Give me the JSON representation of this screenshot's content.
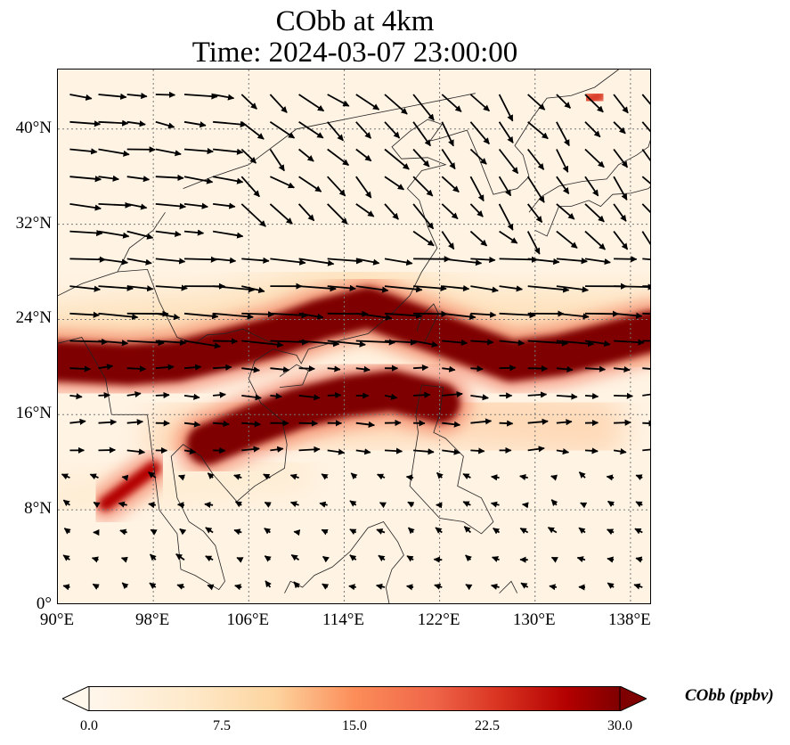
{
  "figure": {
    "title_line1": "CObb at 4km",
    "title_line2": "Time: 2024-03-07 23:00:00"
  },
  "map": {
    "lon_ticks": [
      "90°E",
      "98°E",
      "106°E",
      "114°E",
      "122°E",
      "130°E",
      "138°E"
    ],
    "lat_ticks": [
      "0°",
      "8°N",
      "16°N",
      "24°N",
      "32°N",
      "40°N"
    ],
    "lon_range": [
      90,
      139.8
    ],
    "lat_range": [
      0,
      45
    ],
    "gridlines": true,
    "colormap": "OrRd",
    "colors": {
      "low": "#fff7ec",
      "mid": "#fdbb84",
      "high": "#d7301f",
      "max": "#7f0000"
    },
    "plumes": [
      {
        "name": "main-plume",
        "path": [
          [
            90,
            20.5
          ],
          [
            96,
            20.2
          ],
          [
            100,
            20.5
          ],
          [
            104,
            21.5
          ],
          [
            108,
            22.5
          ],
          [
            112,
            24
          ],
          [
            116,
            25
          ],
          [
            120,
            23.5
          ],
          [
            124,
            22
          ],
          [
            128,
            20.5
          ],
          [
            132,
            21
          ],
          [
            136,
            22
          ],
          [
            139.8,
            23
          ]
        ],
        "level": 30
      },
      {
        "name": "scs-plume",
        "path": [
          [
            102.5,
            13.5
          ],
          [
            106,
            15
          ],
          [
            110,
            16.5
          ],
          [
            114,
            17.5
          ],
          [
            118,
            18
          ],
          [
            122,
            17
          ]
        ],
        "level": 28
      },
      {
        "name": "myanmar-plume",
        "path": [
          [
            94,
            8.5
          ],
          [
            96,
            10
          ],
          [
            98,
            11.5
          ]
        ],
        "level": 22
      },
      {
        "name": "japan-spot",
        "path": [
          [
            134.5,
            42.5
          ],
          [
            135.5,
            42.8
          ]
        ],
        "level": 20
      }
    ]
  },
  "wind_field": {
    "description_hidden": false,
    "regions": [
      {
        "lon": [
          90,
          104
        ],
        "lat": [
          30,
          44
        ],
        "u": 8,
        "v": -1
      },
      {
        "lon": [
          104,
          118
        ],
        "lat": [
          32,
          44
        ],
        "u": 6,
        "v": -5
      },
      {
        "lon": [
          118,
          139.8
        ],
        "lat": [
          30,
          44
        ],
        "u": 5,
        "v": -6
      },
      {
        "lon": [
          90,
          139.8
        ],
        "lat": [
          20,
          30
        ],
        "u": 10,
        "v": -0.8
      },
      {
        "lon": [
          90,
          139.8
        ],
        "lat": [
          12,
          20
        ],
        "u": 5,
        "v": 0
      },
      {
        "lon": [
          90,
          139.8
        ],
        "lat": [
          0,
          12
        ],
        "u": -2,
        "v": 1
      }
    ]
  },
  "colorbar": {
    "label": "CObb (ppbv)",
    "ticks": [
      "0.0",
      "7.5",
      "15.0",
      "22.5",
      "30.0"
    ],
    "range": [
      0,
      30
    ]
  }
}
